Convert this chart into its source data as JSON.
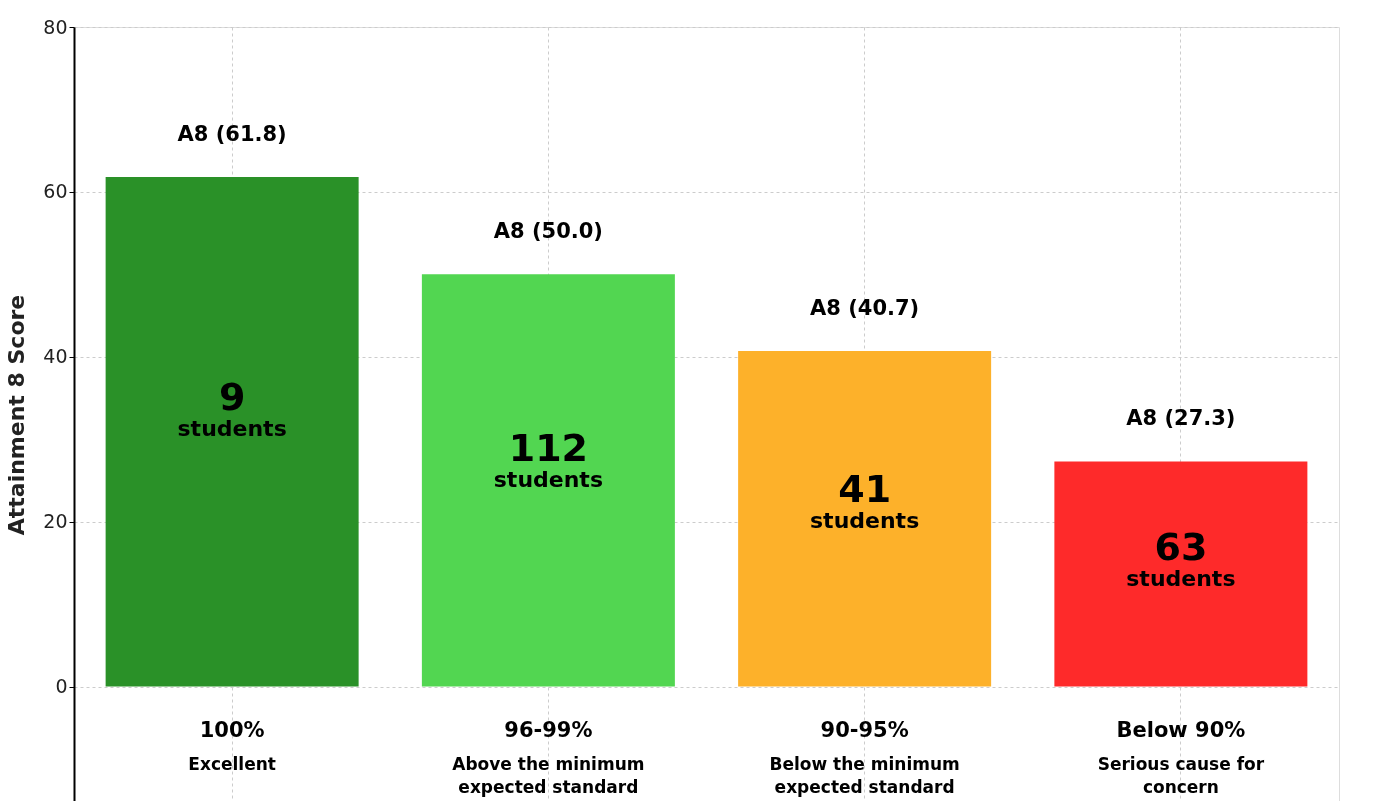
{
  "chart_data": {
    "type": "bar",
    "ylabel": "Attainment 8 Score",
    "categories": [
      "100%",
      "96-99%",
      "90-95%",
      "Below 90%"
    ],
    "values": [
      61.8,
      50.0,
      40.7,
      27.3
    ],
    "colors": [
      "#2a9128",
      "#52d651",
      "#fdb12a",
      "#fe2a2a"
    ],
    "value_labels": [
      "A8 (61.8)",
      "A8 (50.0)",
      "A8 (40.7)",
      "A8 (27.3)"
    ],
    "annotations": [
      "9\nstudents",
      "112\nstudents",
      "41\nstudents",
      "63\nstudents",
      "Excellent",
      "Above the minimum\nexpected standard",
      "Below the minimum\nexpected standard",
      "Serious cause for\nconcern"
    ],
    "ylim": [
      -14,
      80
    ],
    "yticks": [
      0,
      20,
      40,
      60,
      80
    ],
    "grid": true
  }
}
